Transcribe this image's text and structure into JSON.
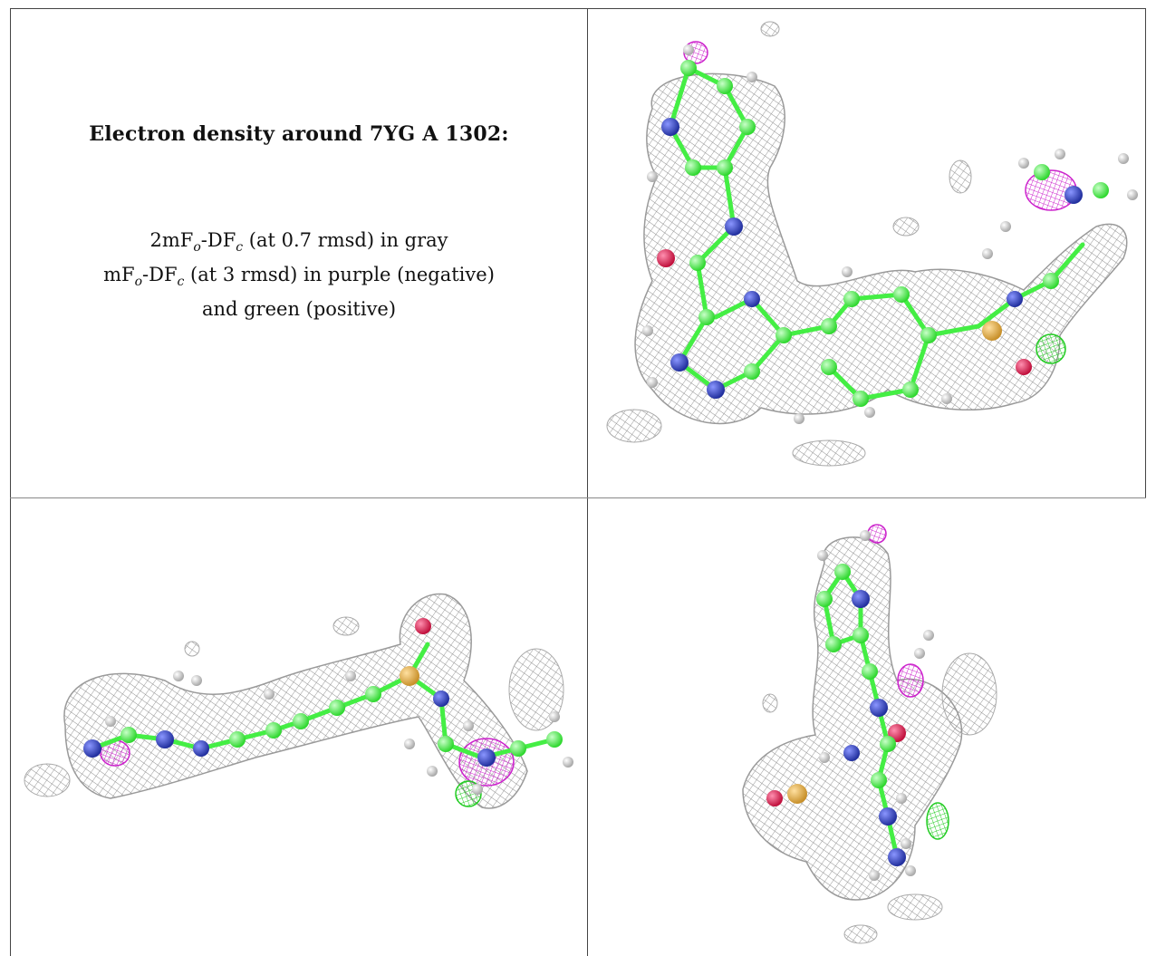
{
  "caption": {
    "title": "Electron density around 7YG A 1302:",
    "line1_prefix": "2mF",
    "line1_sub_o": "o",
    "line1_mid": "-DF",
    "line1_sub_c": "c",
    "line1_suffix": " (at 0.7 rmsd) in gray",
    "line2_prefix": "mF",
    "line2_sub_o": "o",
    "line2_mid": "-DF",
    "line2_sub_c": "c",
    "line2_suffix": " (at 3 rmsd) in purple (negative)",
    "line3": "and green (positive)"
  },
  "colors": {
    "mesh_gray": "#9a9a9a",
    "mesh_negative": "#cc22cc",
    "mesh_positive": "#22cc22",
    "carbon": "#44ee44",
    "nitrogen": "#3344cc",
    "oxygen": "#e02255",
    "sulfur": "#e0b040",
    "hydrogen": "#e8e8e8"
  },
  "panels": [
    {
      "view": "top-right"
    },
    {
      "view": "bottom-left"
    },
    {
      "view": "bottom-right"
    }
  ]
}
